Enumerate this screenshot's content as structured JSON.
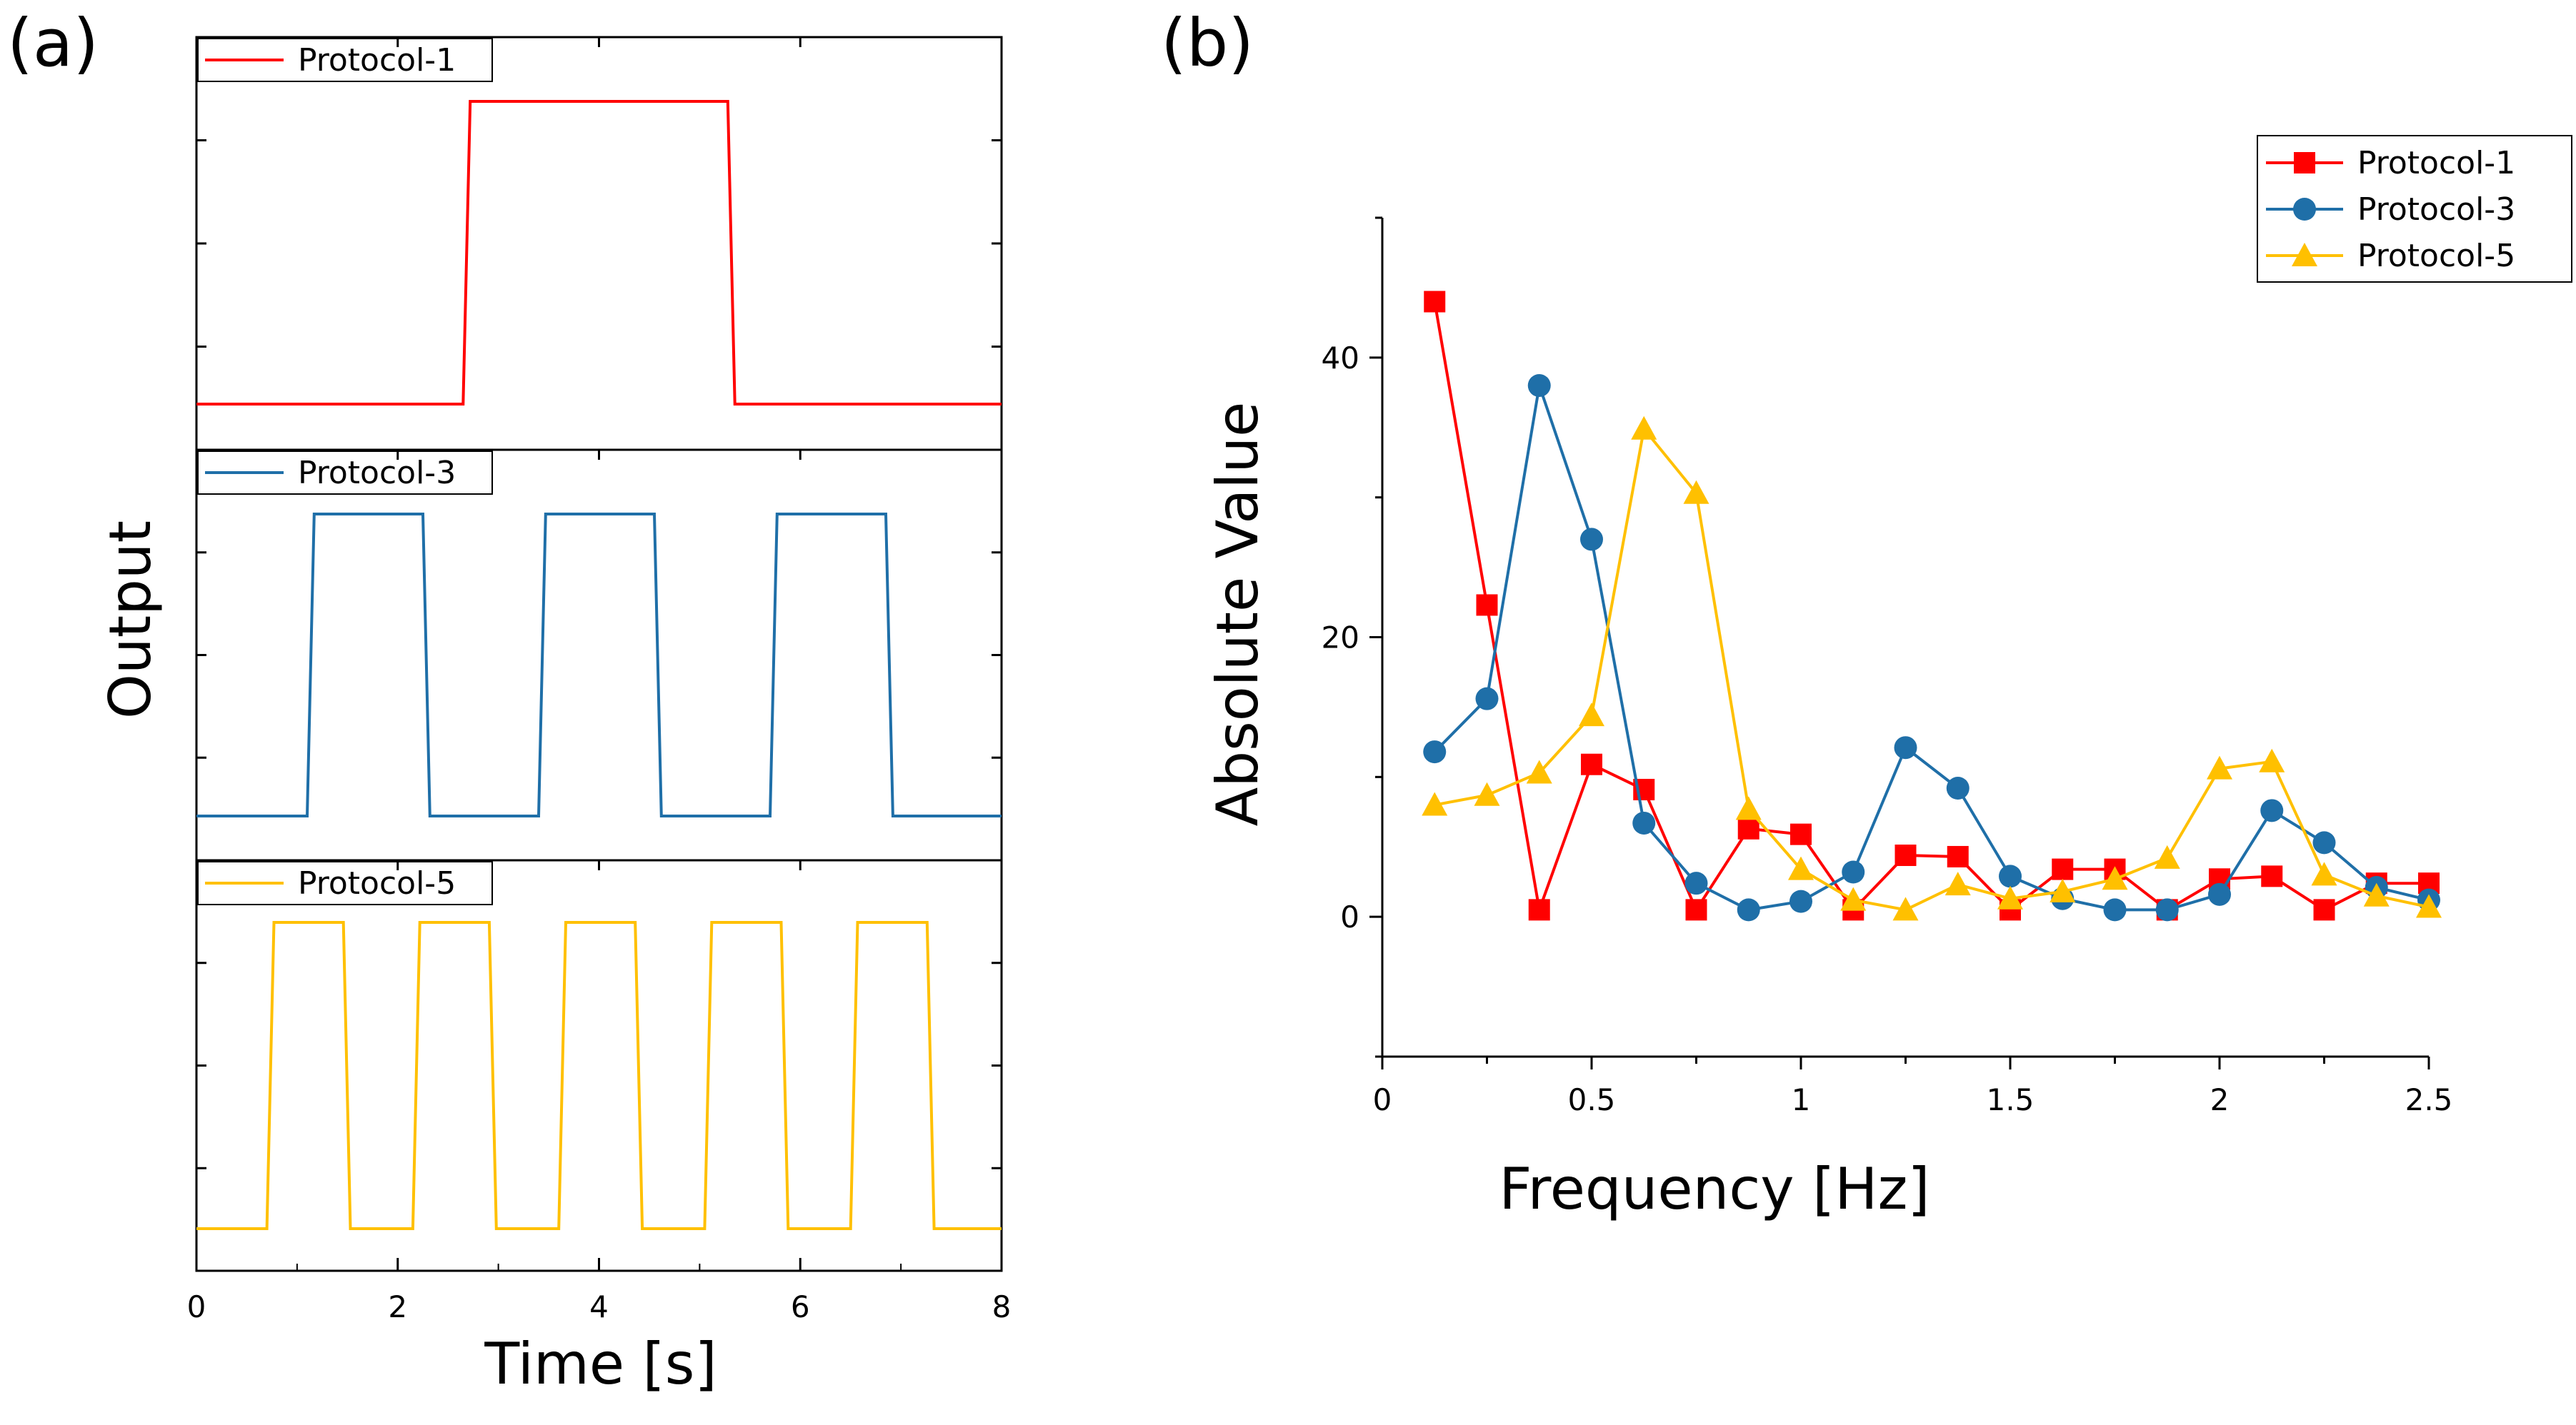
{
  "colors": {
    "protocol_1": "#ff0000",
    "protocol_3": "#1f6fa8",
    "protocol_5": "#ffc000"
  },
  "panel_a": {
    "label": "(a)",
    "ylabel": "Output",
    "xlabel": "Time [s]"
  },
  "panel_b": {
    "label": "(b)",
    "ylabel": "Absolute Value",
    "xlabel": "Frequency [Hz]"
  },
  "chart_data": [
    {
      "type": "line",
      "title": "(a)",
      "xlabel": "Time [s]",
      "ylabel": "Output",
      "xlim": [
        0,
        8
      ],
      "ylim": [
        0,
        1
      ],
      "xticks": [
        "0",
        "2",
        "4",
        "6",
        "8"
      ],
      "subplots": [
        {
          "name": "Protocol-1",
          "color": "#ff0000",
          "x": [
            0,
            2.65,
            2.72,
            5.28,
            5.35,
            8
          ],
          "y": [
            0,
            0,
            1,
            1,
            0,
            0
          ]
        },
        {
          "name": "Protocol-3",
          "color": "#1f6fa8",
          "x": [
            0,
            1.1,
            1.17,
            2.25,
            2.32,
            3.4,
            3.47,
            4.55,
            4.62,
            5.7,
            5.77,
            6.85,
            6.92,
            8
          ],
          "y": [
            0,
            0,
            1,
            1,
            0,
            0,
            1,
            1,
            0,
            0,
            1,
            1,
            0,
            0
          ]
        },
        {
          "name": "Protocol-5",
          "color": "#ffc000",
          "x": [
            0,
            0.7,
            0.77,
            1.46,
            1.53,
            2.15,
            2.22,
            2.91,
            2.98,
            3.6,
            3.67,
            4.36,
            4.43,
            5.05,
            5.12,
            5.81,
            5.88,
            6.5,
            6.57,
            7.26,
            7.33,
            8
          ],
          "y": [
            0,
            0,
            1,
            1,
            0,
            0,
            1,
            1,
            0,
            0,
            1,
            1,
            0,
            0,
            1,
            1,
            0,
            0,
            1,
            1,
            0,
            0
          ]
        }
      ]
    },
    {
      "type": "line",
      "title": "(b)",
      "xlabel": "Frequency [Hz]",
      "ylabel": "Absolute Value",
      "xlim": [
        0,
        2.5
      ],
      "ylim": [
        -10,
        50
      ],
      "xticks": [
        "0",
        "0.5",
        "1",
        "1.5",
        "2",
        "2.5"
      ],
      "yticks": [
        "0",
        "20",
        "40"
      ],
      "legend": "top-right",
      "x": [
        0.125,
        0.25,
        0.375,
        0.5,
        0.625,
        0.75,
        0.875,
        1.0,
        1.125,
        1.25,
        1.375,
        1.5,
        1.625,
        1.75,
        1.875,
        2.0,
        2.125,
        2.25,
        2.375,
        2.5
      ],
      "series": [
        {
          "name": "Protocol-1",
          "marker": "square",
          "color": "#ff0000",
          "values": [
            44,
            22.3,
            0.5,
            10.9,
            9.1,
            0.5,
            6.3,
            5.9,
            0.5,
            4.4,
            4.3,
            0.5,
            3.4,
            3.4,
            0.5,
            2.7,
            2.9,
            0.5,
            2.4,
            2.4
          ]
        },
        {
          "name": "Protocol-3",
          "marker": "circle",
          "color": "#1f6fa8",
          "values": [
            11.8,
            15.6,
            38,
            27,
            6.7,
            2.4,
            0.5,
            1.1,
            3.2,
            12.1,
            9.2,
            2.9,
            1.3,
            0.5,
            0.5,
            1.6,
            7.6,
            5.3,
            2.1,
            1.2
          ]
        },
        {
          "name": "Protocol-5",
          "marker": "triangle",
          "color": "#ffc000",
          "values": [
            8,
            8.7,
            10.3,
            14.4,
            34.9,
            30.3,
            7.7,
            3.4,
            1.2,
            0.5,
            2.3,
            1.3,
            1.8,
            2.7,
            4.2,
            10.6,
            11.1,
            3,
            1.5,
            0.7
          ]
        }
      ]
    }
  ]
}
